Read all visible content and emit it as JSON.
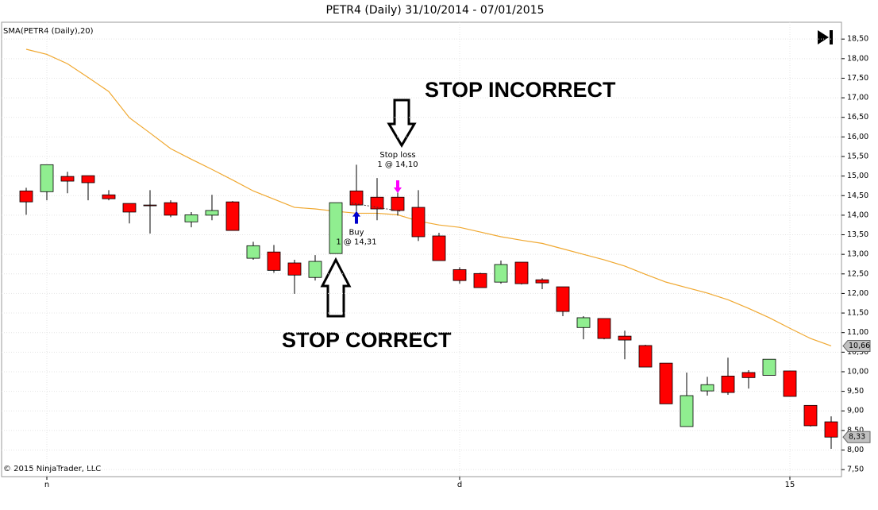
{
  "chart_data": {
    "type": "candlestick",
    "title": "PETR4 (Daily)  31/10/2014 - 07/01/2015",
    "copyright": "© 2015 NinjaTrader, LLC",
    "categories": [
      null,
      "n",
      null,
      null,
      null,
      null,
      null,
      null,
      null,
      null,
      null,
      null,
      null,
      null,
      null,
      null,
      null,
      null,
      null,
      null,
      null,
      "d",
      null,
      null,
      null,
      null,
      null,
      null,
      null,
      null,
      null,
      null,
      null,
      null,
      null,
      null,
      null,
      "15",
      null,
      null
    ],
    "ohlc": {
      "up_color": "#90ee90",
      "down_color": "#ff0000",
      "last_value_label": "8,33",
      "open": [
        14.62,
        14.6,
        14.99,
        15.01,
        14.52,
        14.3,
        14.26,
        14.32,
        13.83,
        14.0,
        14.34,
        12.9,
        13.06,
        12.78,
        12.41,
        13.02,
        14.62,
        14.46,
        14.46,
        14.2,
        13.47,
        12.61,
        12.51,
        12.29,
        12.8,
        12.35,
        12.17,
        11.13,
        11.36,
        10.91,
        10.67,
        10.22,
        8.6,
        9.51,
        9.89,
        9.98,
        9.91,
        10.02,
        9.14,
        8.72
      ],
      "high": [
        14.7,
        15.29,
        15.11,
        15.01,
        14.64,
        14.3,
        14.64,
        14.38,
        14.08,
        14.52,
        14.36,
        13.32,
        13.24,
        12.86,
        12.98,
        14.32,
        15.29,
        14.95,
        14.68,
        14.64,
        13.55,
        12.67,
        12.53,
        12.84,
        12.8,
        12.39,
        12.17,
        11.42,
        11.36,
        11.05,
        10.69,
        10.22,
        9.98,
        9.87,
        10.36,
        10.04,
        10.32,
        10.02,
        9.14,
        8.86
      ],
      "low": [
        14.01,
        14.38,
        14.56,
        14.38,
        14.38,
        13.79,
        13.53,
        13.95,
        13.69,
        13.87,
        13.61,
        12.86,
        12.53,
        11.99,
        12.33,
        13.02,
        14.1,
        13.87,
        13.99,
        13.34,
        12.84,
        12.25,
        12.15,
        12.25,
        12.23,
        12.11,
        11.42,
        10.83,
        10.83,
        10.32,
        10.12,
        9.18,
        8.6,
        9.39,
        9.41,
        9.57,
        9.91,
        9.37,
        8.6,
        8.03
      ],
      "close": [
        14.34,
        15.29,
        14.87,
        14.83,
        14.42,
        14.08,
        14.25,
        14.0,
        14.01,
        14.12,
        13.61,
        13.22,
        12.59,
        12.47,
        12.82,
        14.32,
        14.26,
        14.16,
        14.12,
        13.45,
        12.84,
        12.33,
        12.15,
        12.74,
        12.25,
        12.27,
        11.54,
        11.38,
        10.85,
        10.81,
        10.12,
        9.18,
        9.39,
        9.67,
        9.47,
        9.85,
        10.32,
        9.37,
        8.62,
        8.33
      ]
    },
    "series": [
      {
        "name": "SMA(PETR4 (Daily),20)",
        "color": "#f0a830",
        "last_value_label": "10,66",
        "values": [
          18.24,
          18.11,
          17.87,
          17.52,
          17.16,
          16.49,
          16.1,
          15.7,
          15.43,
          15.17,
          14.9,
          14.62,
          14.41,
          14.2,
          14.16,
          14.1,
          14.05,
          14.05,
          14.01,
          13.85,
          13.75,
          13.69,
          13.57,
          13.45,
          13.36,
          13.28,
          13.14,
          13.0,
          12.86,
          12.7,
          12.49,
          12.29,
          12.15,
          12.01,
          11.84,
          11.62,
          11.38,
          11.11,
          10.85,
          10.66
        ]
      }
    ],
    "executions": [
      {
        "label": "Buy",
        "detail": "1 @ 14,31",
        "price": 14.31,
        "bar": 16,
        "color": "#0000cc"
      },
      {
        "label": "Stop loss",
        "detail": "1 @ 14,10",
        "price": 14.1,
        "bar": 18,
        "color": "#ff00ff"
      }
    ],
    "annotations": [
      {
        "text": "STOP INCORRECT"
      },
      {
        "text": "STOP CORRECT"
      }
    ],
    "ylim": [
      7.32,
      18.93
    ],
    "yticks": [
      {
        "value": 7.5,
        "label": "7,50"
      },
      {
        "value": 8,
        "label": "8,00"
      },
      {
        "value": 8.5,
        "label": "8,50"
      },
      {
        "value": 9,
        "label": "9,00"
      },
      {
        "value": 9.5,
        "label": "9,50"
      },
      {
        "value": 10,
        "label": "10,00"
      },
      {
        "value": 10.5,
        "label": "10,50"
      },
      {
        "value": 11,
        "label": "11,00"
      },
      {
        "value": 11.5,
        "label": "11,50"
      },
      {
        "value": 12,
        "label": "12,00"
      },
      {
        "value": 12.5,
        "label": "12,50"
      },
      {
        "value": 13,
        "label": "13,00"
      },
      {
        "value": 13.5,
        "label": "13,50"
      },
      {
        "value": 14,
        "label": "14,00"
      },
      {
        "value": 14.5,
        "label": "14,50"
      },
      {
        "value": 15,
        "label": "15,00"
      },
      {
        "value": 15.5,
        "label": "15,50"
      },
      {
        "value": 16,
        "label": "16,00"
      },
      {
        "value": 16.5,
        "label": "16,50"
      },
      {
        "value": 17,
        "label": "17,00"
      },
      {
        "value": 17.5,
        "label": "17,50"
      },
      {
        "value": 18,
        "label": "18,00"
      },
      {
        "value": 18.5,
        "label": "18,50"
      }
    ],
    "grid": true
  }
}
